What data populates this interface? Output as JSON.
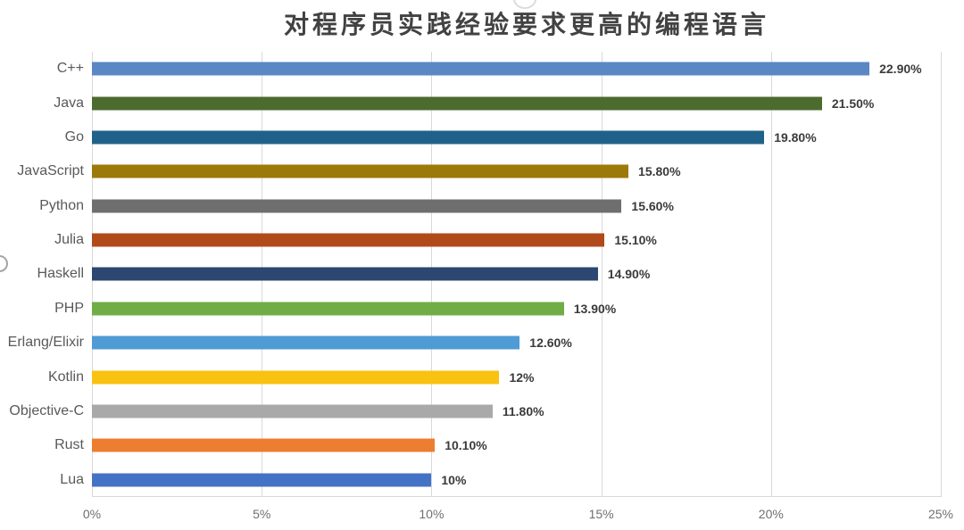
{
  "title": "对程序员实践经验要求更高的编程语言",
  "chart_data": {
    "type": "bar",
    "orientation": "horizontal",
    "title": "对程序员实践经验要求更高的编程语言",
    "categories": [
      "C++",
      "Java",
      "Go",
      "JavaScript",
      "Python",
      "Julia",
      "Haskell",
      "PHP",
      "Erlang/Elixir",
      "Kotlin",
      "Objective-C",
      "Rust",
      "Lua"
    ],
    "values": [
      22.9,
      21.5,
      19.8,
      15.8,
      15.6,
      15.1,
      14.9,
      13.9,
      12.6,
      12,
      11.8,
      10.1,
      10
    ],
    "value_labels": [
      "22.90%",
      "21.50%",
      "19.80%",
      "15.80%",
      "15.60%",
      "15.10%",
      "14.90%",
      "13.90%",
      "12.60%",
      "12%",
      "11.80%",
      "10.10%",
      "10%"
    ],
    "bar_colors": [
      "#5b87c5",
      "#4c6b2f",
      "#20618b",
      "#9c7a0a",
      "#6e6e6e",
      "#b04a1a",
      "#2c4770",
      "#70ad47",
      "#4f9bd5",
      "#f9c210",
      "#a9a9a9",
      "#ed7d31",
      "#4472c4"
    ],
    "x_ticks": [
      "0%",
      "5%",
      "10%",
      "15%",
      "20%",
      "25%"
    ],
    "x_tick_values": [
      0,
      5,
      10,
      15,
      20,
      25
    ],
    "xlim": [
      0,
      25
    ],
    "xlabel": "",
    "ylabel": "",
    "grid": true,
    "legend": "none"
  },
  "colors": {
    "grid": "#d9d9d9",
    "axis_line": "#d9d9d9",
    "tick_text": "#6f6f6f",
    "category_text": "#595959",
    "value_text": "#3b3b3b",
    "title_text": "#424242",
    "background": "#ffffff"
  }
}
